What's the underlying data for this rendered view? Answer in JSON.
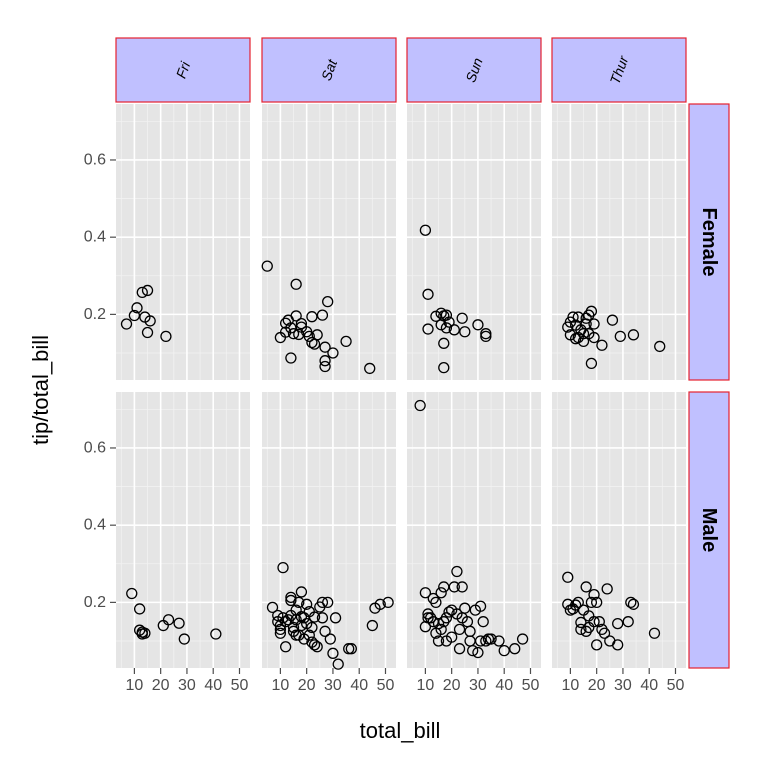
{
  "chart_data": {
    "type": "scatter",
    "xlabel": "total_bill",
    "ylabel": "tip/total_bill",
    "xlim": [
      3,
      54
    ],
    "ylim": [
      0.03,
      0.745
    ],
    "x_ticks": [
      10,
      20,
      30,
      40,
      50
    ],
    "x_tick_labels": [
      "10",
      "20",
      "30",
      "40",
      "50"
    ],
    "y_ticks": [
      0.2,
      0.4,
      0.6
    ],
    "y_tick_labels": [
      "0.2",
      "0.4",
      "0.6"
    ],
    "grid": true,
    "facet_cols": [
      "Fri",
      "Sat",
      "Sun",
      "Thur"
    ],
    "facet_rows": [
      "Female",
      "Male"
    ],
    "panels": [
      {
        "row": "Female",
        "col": "Fri",
        "points": [
          [
            7,
            0.175
          ],
          [
            10,
            0.197
          ],
          [
            11,
            0.217
          ],
          [
            13,
            0.257
          ],
          [
            15,
            0.262
          ],
          [
            14,
            0.193
          ],
          [
            16,
            0.183
          ],
          [
            15,
            0.153
          ],
          [
            22,
            0.143
          ]
        ]
      },
      {
        "row": "Female",
        "col": "Sat",
        "points": [
          [
            5,
            0.325
          ],
          [
            10,
            0.14
          ],
          [
            12,
            0.154
          ],
          [
            13,
            0.185
          ],
          [
            12,
            0.177
          ],
          [
            16,
            0.278
          ],
          [
            16,
            0.196
          ],
          [
            14,
            0.165
          ],
          [
            15,
            0.15
          ],
          [
            17,
            0.148
          ],
          [
            14,
            0.087
          ],
          [
            18,
            0.176
          ],
          [
            18,
            0.167
          ],
          [
            20,
            0.155
          ],
          [
            21,
            0.143
          ],
          [
            22,
            0.127
          ],
          [
            22,
            0.194
          ],
          [
            23,
            0.123
          ],
          [
            24,
            0.147
          ],
          [
            26,
            0.198
          ],
          [
            27,
            0.115
          ],
          [
            28,
            0.233
          ],
          [
            27,
            0.08
          ],
          [
            27,
            0.065
          ],
          [
            30,
            0.1
          ],
          [
            35,
            0.13
          ],
          [
            44,
            0.06
          ]
        ]
      },
      {
        "row": "Female",
        "col": "Sun",
        "points": [
          [
            10,
            0.418
          ],
          [
            11,
            0.252
          ],
          [
            11,
            0.162
          ],
          [
            14,
            0.195
          ],
          [
            16,
            0.203
          ],
          [
            17,
            0.196
          ],
          [
            16,
            0.173
          ],
          [
            18,
            0.198
          ],
          [
            19,
            0.18
          ],
          [
            18,
            0.165
          ],
          [
            17,
            0.125
          ],
          [
            17,
            0.062
          ],
          [
            21,
            0.16
          ],
          [
            24,
            0.19
          ],
          [
            25,
            0.155
          ],
          [
            30,
            0.173
          ],
          [
            33,
            0.15
          ],
          [
            33,
            0.143
          ]
        ]
      },
      {
        "row": "Female",
        "col": "Thur",
        "points": [
          [
            9,
            0.167
          ],
          [
            10,
            0.18
          ],
          [
            10,
            0.147
          ],
          [
            11,
            0.193
          ],
          [
            12,
            0.172
          ],
          [
            13,
            0.14
          ],
          [
            12,
            0.137
          ],
          [
            13,
            0.193
          ],
          [
            14,
            0.16
          ],
          [
            15,
            0.15
          ],
          [
            15,
            0.13
          ],
          [
            16,
            0.175
          ],
          [
            16,
            0.19
          ],
          [
            17,
            0.198
          ],
          [
            17,
            0.15
          ],
          [
            18,
            0.208
          ],
          [
            19,
            0.175
          ],
          [
            19,
            0.14
          ],
          [
            18,
            0.073
          ],
          [
            22,
            0.12
          ],
          [
            26,
            0.185
          ],
          [
            29,
            0.143
          ],
          [
            34,
            0.147
          ],
          [
            44,
            0.117
          ]
        ]
      },
      {
        "row": "Male",
        "col": "Fri",
        "points": [
          [
            9,
            0.223
          ],
          [
            12,
            0.183
          ],
          [
            12,
            0.128
          ],
          [
            13,
            0.118
          ],
          [
            13,
            0.123
          ],
          [
            14,
            0.12
          ],
          [
            21,
            0.14
          ],
          [
            23,
            0.155
          ],
          [
            27,
            0.146
          ],
          [
            29,
            0.105
          ],
          [
            41,
            0.118
          ]
        ]
      },
      {
        "row": "Male",
        "col": "Sat",
        "points": [
          [
            7,
            0.187
          ],
          [
            9,
            0.166
          ],
          [
            9,
            0.15
          ],
          [
            10,
            0.14
          ],
          [
            10,
            0.13
          ],
          [
            10,
            0.12
          ],
          [
            11,
            0.16
          ],
          [
            12,
            0.15
          ],
          [
            11,
            0.29
          ],
          [
            12,
            0.085
          ],
          [
            13,
            0.155
          ],
          [
            14,
            0.205
          ],
          [
            14,
            0.213
          ],
          [
            14,
            0.166
          ],
          [
            15,
            0.135
          ],
          [
            15,
            0.125
          ],
          [
            16,
            0.18
          ],
          [
            16,
            0.155
          ],
          [
            16,
            0.115
          ],
          [
            17,
            0.2
          ],
          [
            17,
            0.115
          ],
          [
            18,
            0.227
          ],
          [
            18,
            0.163
          ],
          [
            18,
            0.14
          ],
          [
            19,
            0.105
          ],
          [
            19,
            0.16
          ],
          [
            20,
            0.195
          ],
          [
            20,
            0.145
          ],
          [
            21,
            0.176
          ],
          [
            21,
            0.115
          ],
          [
            22,
            0.097
          ],
          [
            22,
            0.135
          ],
          [
            23,
            0.162
          ],
          [
            23,
            0.09
          ],
          [
            24,
            0.085
          ],
          [
            25,
            0.188
          ],
          [
            26,
            0.2
          ],
          [
            26,
            0.16
          ],
          [
            27,
            0.125
          ],
          [
            28,
            0.2
          ],
          [
            29,
            0.105
          ],
          [
            30,
            0.068
          ],
          [
            31,
            0.16
          ],
          [
            32,
            0.04
          ],
          [
            36,
            0.08
          ],
          [
            37,
            0.08
          ],
          [
            45,
            0.14
          ],
          [
            46,
            0.185
          ],
          [
            48,
            0.195
          ],
          [
            51,
            0.2
          ]
        ]
      },
      {
        "row": "Male",
        "col": "Sun",
        "points": [
          [
            8,
            0.71
          ],
          [
            10,
            0.225
          ],
          [
            10,
            0.137
          ],
          [
            11,
            0.16
          ],
          [
            11,
            0.17
          ],
          [
            12,
            0.16
          ],
          [
            13,
            0.21
          ],
          [
            13,
            0.15
          ],
          [
            14,
            0.12
          ],
          [
            14,
            0.2
          ],
          [
            15,
            0.1
          ],
          [
            15,
            0.145
          ],
          [
            16,
            0.225
          ],
          [
            16,
            0.13
          ],
          [
            17,
            0.24
          ],
          [
            17,
            0.15
          ],
          [
            18,
            0.1
          ],
          [
            18,
            0.16
          ],
          [
            19,
            0.175
          ],
          [
            20,
            0.18
          ],
          [
            20,
            0.11
          ],
          [
            21,
            0.24
          ],
          [
            22,
            0.28
          ],
          [
            22,
            0.17
          ],
          [
            23,
            0.13
          ],
          [
            23,
            0.08
          ],
          [
            24,
            0.24
          ],
          [
            24,
            0.16
          ],
          [
            25,
            0.185
          ],
          [
            26,
            0.15
          ],
          [
            27,
            0.1
          ],
          [
            27,
            0.125
          ],
          [
            28,
            0.075
          ],
          [
            29,
            0.18
          ],
          [
            30,
            0.07
          ],
          [
            31,
            0.19
          ],
          [
            31,
            0.1
          ],
          [
            32,
            0.15
          ],
          [
            33,
            0.1
          ],
          [
            34,
            0.105
          ],
          [
            35,
            0.105
          ],
          [
            38,
            0.1
          ],
          [
            40,
            0.075
          ],
          [
            44,
            0.08
          ],
          [
            47,
            0.105
          ]
        ]
      },
      {
        "row": "Male",
        "col": "Thur",
        "points": [
          [
            9,
            0.265
          ],
          [
            9,
            0.195
          ],
          [
            10,
            0.18
          ],
          [
            11,
            0.183
          ],
          [
            12,
            0.193
          ],
          [
            13,
            0.2
          ],
          [
            14,
            0.148
          ],
          [
            14,
            0.13
          ],
          [
            15,
            0.18
          ],
          [
            16,
            0.24
          ],
          [
            16,
            0.125
          ],
          [
            17,
            0.165
          ],
          [
            17,
            0.135
          ],
          [
            18,
            0.2
          ],
          [
            19,
            0.22
          ],
          [
            19,
            0.15
          ],
          [
            20,
            0.2
          ],
          [
            20,
            0.09
          ],
          [
            21,
            0.15
          ],
          [
            22,
            0.13
          ],
          [
            23,
            0.12
          ],
          [
            24,
            0.235
          ],
          [
            25,
            0.1
          ],
          [
            28,
            0.145
          ],
          [
            28,
            0.09
          ],
          [
            32,
            0.15
          ],
          [
            33,
            0.2
          ],
          [
            34,
            0.195
          ],
          [
            42,
            0.12
          ]
        ]
      }
    ]
  }
}
